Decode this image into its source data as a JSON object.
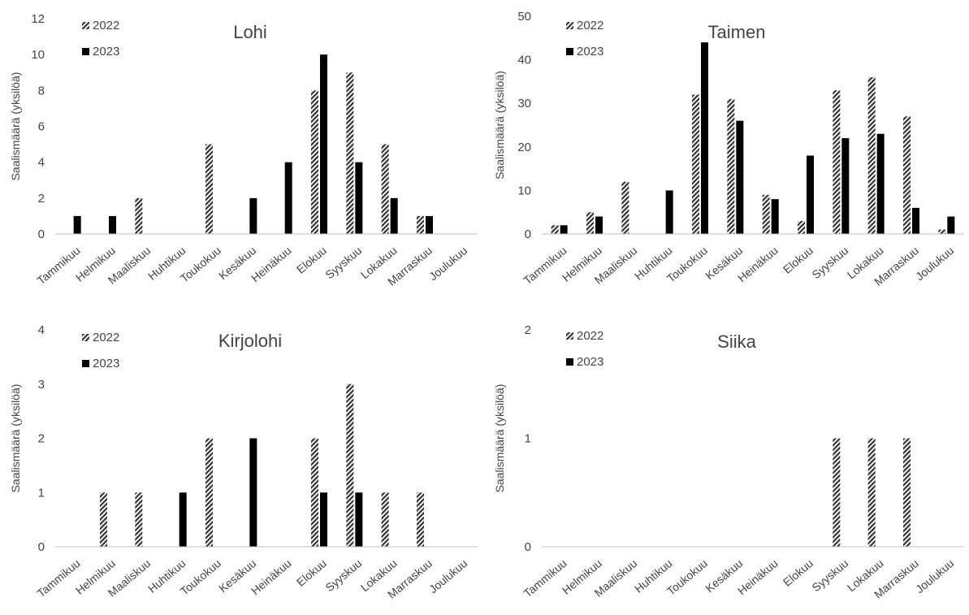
{
  "chart_data": [
    {
      "type": "bar",
      "title": "Lohi",
      "ylabel": "Saalismäärä (yksilöä)",
      "xlabel": "",
      "ylim": [
        0,
        12
      ],
      "yticks": [
        0,
        2,
        4,
        6,
        8,
        10,
        12
      ],
      "grid": false,
      "legend": "top-left",
      "categories": [
        "Tammikuu",
        "Helmikuu",
        "Maaliskuu",
        "Huhtikuu",
        "Toukokuu",
        "Kesäkuu",
        "Heinäkuu",
        "Elokuu",
        "Syyskuu",
        "Lokakuu",
        "Marraskuu",
        "Joulukuu"
      ],
      "series": [
        {
          "name": "2022",
          "style": "hatched",
          "values": [
            0,
            0,
            2,
            0,
            5,
            0,
            0,
            8,
            9,
            5,
            1,
            0
          ]
        },
        {
          "name": "2023",
          "style": "solid",
          "values": [
            1,
            1,
            0,
            0,
            0,
            2,
            4,
            10,
            4,
            2,
            1,
            0
          ]
        }
      ]
    },
    {
      "type": "bar",
      "title": "Taimen",
      "ylabel": "Saalismäärä (yksilöä)",
      "xlabel": "",
      "ylim": [
        0,
        50
      ],
      "yticks": [
        0,
        10,
        20,
        30,
        40,
        50
      ],
      "grid": false,
      "legend": "top-left",
      "categories": [
        "Tammikuu",
        "Helmikuu",
        "Maaliskuu",
        "Huhtikuu",
        "Toukokuu",
        "Kesäkuu",
        "Heinäkuu",
        "Elokuu",
        "Syyskuu",
        "Lokakuu",
        "Marraskuu",
        "Joulukuu"
      ],
      "series": [
        {
          "name": "2022",
          "style": "hatched",
          "values": [
            2,
            5,
            12,
            0,
            32,
            31,
            9,
            3,
            33,
            36,
            27,
            1
          ]
        },
        {
          "name": "2023",
          "style": "solid",
          "values": [
            2,
            4,
            0,
            10,
            44,
            26,
            8,
            18,
            22,
            23,
            6,
            4
          ]
        }
      ]
    },
    {
      "type": "bar",
      "title": "Kirjolohi",
      "ylabel": "Saalismäärä (yksilöä)",
      "xlabel": "",
      "ylim": [
        0,
        4
      ],
      "yticks": [
        0,
        1,
        2,
        3,
        4
      ],
      "grid": false,
      "legend": "top-left",
      "categories": [
        "Tammikuu",
        "Helmikuu",
        "Maaliskuu",
        "Huhtikuu",
        "Toukokuu",
        "Kesäkuu",
        "Heinäkuu",
        "Elokuu",
        "Syyskuu",
        "Lokakuu",
        "Marraskuu",
        "Joulukuu"
      ],
      "series": [
        {
          "name": "2022",
          "style": "hatched",
          "values": [
            0,
            1,
            1,
            0,
            2,
            0,
            0,
            2,
            3,
            1,
            1,
            0
          ]
        },
        {
          "name": "2023",
          "style": "solid",
          "values": [
            0,
            0,
            0,
            1,
            0,
            2,
            0,
            1,
            1,
            0,
            0,
            0
          ]
        }
      ]
    },
    {
      "type": "bar",
      "title": "Siika",
      "ylabel": "Saalismäärä (yksilöä)",
      "xlabel": "",
      "ylim": [
        0,
        2
      ],
      "yticks": [
        0,
        1,
        2
      ],
      "grid": false,
      "legend": "top-left",
      "categories": [
        "Tammikuu",
        "Helmikuu",
        "Maaliskuu",
        "Huhtikuu",
        "Toukokuu",
        "Kesäkuu",
        "Heinäkuu",
        "Elokuu",
        "Syyskuu",
        "Lokakuu",
        "Marraskuu",
        "Joulukuu"
      ],
      "series": [
        {
          "name": "2022",
          "style": "hatched",
          "values": [
            0,
            0,
            0,
            0,
            0,
            0,
            0,
            0,
            1,
            1,
            1,
            0
          ]
        },
        {
          "name": "2023",
          "style": "solid",
          "values": [
            0,
            0,
            0,
            0,
            0,
            0,
            0,
            0,
            0,
            0,
            0,
            0
          ]
        }
      ]
    }
  ],
  "colors": {
    "hatch": "#333333",
    "solid": "#000000",
    "text": "#444444",
    "axis": "#bfbfbf"
  }
}
